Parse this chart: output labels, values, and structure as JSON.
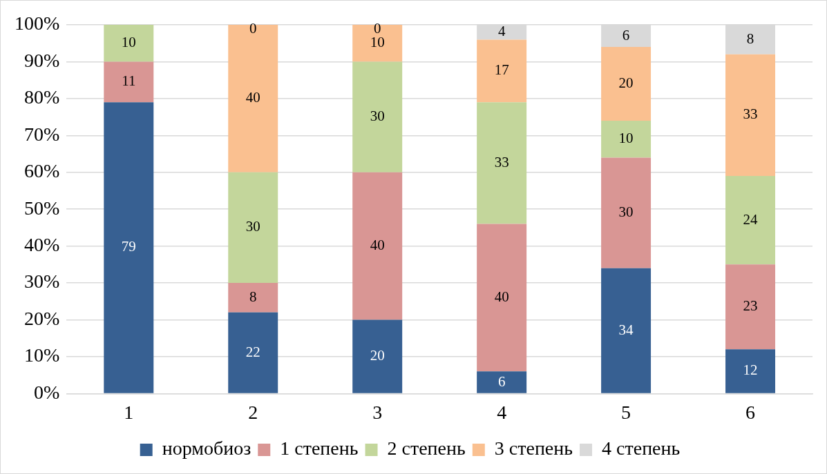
{
  "chart_data": {
    "type": "bar",
    "stacked": true,
    "categories": [
      "1",
      "2",
      "3",
      "4",
      "5",
      "6"
    ],
    "series": [
      {
        "name": "нормобиоз",
        "color": "#376092",
        "values": [
          79,
          22,
          20,
          6,
          34,
          12
        ],
        "value_labels": [
          "79",
          "22",
          "20",
          "6",
          "34",
          "12"
        ]
      },
      {
        "name": "1 степень",
        "color": "#d99694",
        "values": [
          11,
          8,
          40,
          40,
          30,
          23
        ],
        "value_labels": [
          "11",
          "8",
          "40",
          "40",
          "30",
          "23"
        ]
      },
      {
        "name": "2 степень",
        "color": "#c3d69b",
        "values": [
          10,
          30,
          30,
          33,
          10,
          24
        ],
        "value_labels": [
          "10",
          "30",
          "30",
          "33",
          "10",
          "24"
        ]
      },
      {
        "name": "3 степень",
        "color": "#fac090",
        "values": [
          null,
          40,
          10,
          17,
          20,
          33
        ],
        "value_labels": [
          null,
          "40",
          "10",
          "17",
          "20",
          "33"
        ]
      },
      {
        "name": "4 степень",
        "color": "#d9d9d9",
        "values": [
          null,
          0,
          0,
          4,
          6,
          8
        ],
        "value_labels": [
          null,
          "0",
          "0",
          "4",
          "6",
          "8"
        ]
      }
    ],
    "ylim": [
      0,
      100
    ],
    "yticks": [
      {
        "value": 0,
        "label": "0%"
      },
      {
        "value": 10,
        "label": "10%"
      },
      {
        "value": 20,
        "label": "20%"
      },
      {
        "value": 30,
        "label": "30%"
      },
      {
        "value": 40,
        "label": "40%"
      },
      {
        "value": 50,
        "label": "50%"
      },
      {
        "value": 60,
        "label": "60%"
      },
      {
        "value": 70,
        "label": "70%"
      },
      {
        "value": 80,
        "label": "80%"
      },
      {
        "value": 90,
        "label": "90%"
      },
      {
        "value": 100,
        "label": "100%"
      }
    ],
    "grid": "y",
    "legend": "bottom"
  }
}
